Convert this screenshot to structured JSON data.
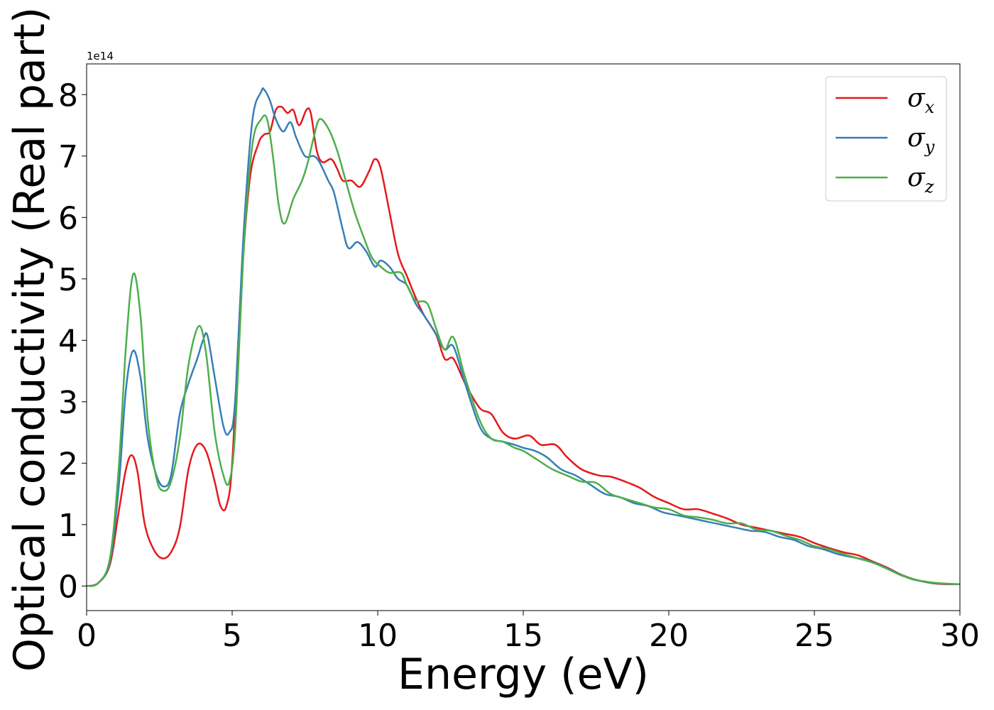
{
  "chart_data": {
    "type": "line",
    "title": "",
    "xlabel": "Energy (eV)",
    "ylabel": "Optical conductivity (Real part)",
    "y_offset_text": "1e14",
    "y_scale": 100000000000000.0,
    "xlim": [
      0,
      30
    ],
    "ylim": [
      -0.4,
      8.5
    ],
    "x_ticks": [
      0,
      5,
      10,
      15,
      20,
      25,
      30
    ],
    "x_tick_labels": [
      "0",
      "5",
      "10",
      "15",
      "20",
      "25",
      "30"
    ],
    "y_ticks": [
      0,
      1,
      2,
      3,
      4,
      5,
      6,
      7,
      8
    ],
    "y_tick_labels": [
      "0",
      "1",
      "2",
      "3",
      "4",
      "5",
      "6",
      "7",
      "8"
    ],
    "grid": false,
    "legend_position": "top-right",
    "series": [
      {
        "name": "σx",
        "legend_base": "σ",
        "legend_sub": "x",
        "color": "#e41a1c",
        "points": [
          [
            0,
            0
          ],
          [
            0.4,
            0.05
          ],
          [
            0.8,
            0.35
          ],
          [
            1.1,
            1.2
          ],
          [
            1.35,
            1.9
          ],
          [
            1.55,
            2.13
          ],
          [
            1.75,
            1.85
          ],
          [
            2.0,
            1.0
          ],
          [
            2.3,
            0.6
          ],
          [
            2.6,
            0.45
          ],
          [
            2.9,
            0.55
          ],
          [
            3.2,
            0.95
          ],
          [
            3.5,
            1.9
          ],
          [
            3.8,
            2.3
          ],
          [
            4.1,
            2.2
          ],
          [
            4.4,
            1.7
          ],
          [
            4.6,
            1.3
          ],
          [
            4.8,
            1.3
          ],
          [
            5.0,
            2.0
          ],
          [
            5.3,
            4.8
          ],
          [
            5.6,
            6.6
          ],
          [
            5.9,
            7.2
          ],
          [
            6.1,
            7.35
          ],
          [
            6.3,
            7.4
          ],
          [
            6.5,
            7.75
          ],
          [
            6.7,
            7.8
          ],
          [
            6.9,
            7.7
          ],
          [
            7.1,
            7.75
          ],
          [
            7.3,
            7.5
          ],
          [
            7.55,
            7.75
          ],
          [
            7.7,
            7.7
          ],
          [
            7.9,
            7.1
          ],
          [
            8.1,
            6.9
          ],
          [
            8.4,
            6.95
          ],
          [
            8.6,
            6.8
          ],
          [
            8.8,
            6.6
          ],
          [
            9.1,
            6.6
          ],
          [
            9.4,
            6.5
          ],
          [
            9.7,
            6.75
          ],
          [
            9.9,
            6.95
          ],
          [
            10.1,
            6.8
          ],
          [
            10.4,
            6.1
          ],
          [
            10.7,
            5.4
          ],
          [
            11.0,
            5.05
          ],
          [
            11.3,
            4.7
          ],
          [
            11.6,
            4.4
          ],
          [
            12.0,
            4.1
          ],
          [
            12.3,
            3.7
          ],
          [
            12.6,
            3.7
          ],
          [
            13.0,
            3.3
          ],
          [
            13.5,
            2.9
          ],
          [
            13.9,
            2.8
          ],
          [
            14.3,
            2.5
          ],
          [
            14.7,
            2.4
          ],
          [
            15.2,
            2.45
          ],
          [
            15.6,
            2.3
          ],
          [
            16.1,
            2.3
          ],
          [
            16.5,
            2.1
          ],
          [
            17.0,
            1.9
          ],
          [
            17.6,
            1.8
          ],
          [
            18.0,
            1.78
          ],
          [
            18.5,
            1.7
          ],
          [
            19.0,
            1.6
          ],
          [
            19.5,
            1.45
          ],
          [
            20.0,
            1.35
          ],
          [
            20.5,
            1.25
          ],
          [
            21.0,
            1.25
          ],
          [
            21.5,
            1.18
          ],
          [
            22.0,
            1.1
          ],
          [
            22.5,
            1.0
          ],
          [
            23.0,
            0.95
          ],
          [
            23.5,
            0.9
          ],
          [
            24.0,
            0.85
          ],
          [
            24.5,
            0.8
          ],
          [
            25.0,
            0.7
          ],
          [
            25.5,
            0.62
          ],
          [
            26.0,
            0.55
          ],
          [
            26.5,
            0.5
          ],
          [
            27.0,
            0.4
          ],
          [
            27.5,
            0.3
          ],
          [
            28.0,
            0.18
          ],
          [
            28.5,
            0.1
          ],
          [
            29.0,
            0.05
          ],
          [
            29.5,
            0.03
          ],
          [
            30.0,
            0.03
          ]
        ]
      },
      {
        "name": "σy",
        "legend_base": "σ",
        "legend_sub": "y",
        "color": "#377eb8",
        "points": [
          [
            0,
            0
          ],
          [
            0.4,
            0.05
          ],
          [
            0.8,
            0.4
          ],
          [
            1.1,
            1.6
          ],
          [
            1.35,
            3.2
          ],
          [
            1.6,
            3.83
          ],
          [
            1.85,
            3.4
          ],
          [
            2.1,
            2.4
          ],
          [
            2.4,
            1.8
          ],
          [
            2.65,
            1.62
          ],
          [
            2.9,
            1.8
          ],
          [
            3.2,
            2.8
          ],
          [
            3.5,
            3.3
          ],
          [
            3.8,
            3.7
          ],
          [
            4.0,
            4.0
          ],
          [
            4.15,
            4.08
          ],
          [
            4.4,
            3.4
          ],
          [
            4.7,
            2.6
          ],
          [
            4.9,
            2.5
          ],
          [
            5.1,
            3.0
          ],
          [
            5.4,
            5.8
          ],
          [
            5.7,
            7.6
          ],
          [
            6.0,
            8.05
          ],
          [
            6.1,
            8.08
          ],
          [
            6.3,
            7.9
          ],
          [
            6.5,
            7.6
          ],
          [
            6.75,
            7.4
          ],
          [
            7.0,
            7.55
          ],
          [
            7.2,
            7.3
          ],
          [
            7.5,
            7.0
          ],
          [
            7.8,
            7.0
          ],
          [
            8.0,
            6.9
          ],
          [
            8.3,
            6.6
          ],
          [
            8.5,
            6.4
          ],
          [
            8.8,
            5.8
          ],
          [
            9.0,
            5.5
          ],
          [
            9.3,
            5.6
          ],
          [
            9.6,
            5.45
          ],
          [
            9.9,
            5.2
          ],
          [
            10.1,
            5.3
          ],
          [
            10.4,
            5.2
          ],
          [
            10.7,
            5.0
          ],
          [
            11.0,
            4.9
          ],
          [
            11.3,
            4.6
          ],
          [
            11.6,
            4.4
          ],
          [
            12.0,
            4.1
          ],
          [
            12.3,
            3.85
          ],
          [
            12.6,
            3.9
          ],
          [
            13.0,
            3.3
          ],
          [
            13.5,
            2.6
          ],
          [
            13.9,
            2.4
          ],
          [
            14.3,
            2.35
          ],
          [
            14.7,
            2.3
          ],
          [
            15.0,
            2.25
          ],
          [
            15.4,
            2.2
          ],
          [
            15.8,
            2.1
          ],
          [
            16.3,
            1.9
          ],
          [
            16.8,
            1.8
          ],
          [
            17.3,
            1.65
          ],
          [
            17.8,
            1.5
          ],
          [
            18.3,
            1.45
          ],
          [
            18.8,
            1.35
          ],
          [
            19.3,
            1.3
          ],
          [
            19.8,
            1.2
          ],
          [
            20.3,
            1.15
          ],
          [
            20.8,
            1.1
          ],
          [
            21.3,
            1.05
          ],
          [
            21.8,
            1.0
          ],
          [
            22.3,
            0.95
          ],
          [
            22.8,
            0.9
          ],
          [
            23.3,
            0.88
          ],
          [
            23.8,
            0.8
          ],
          [
            24.3,
            0.75
          ],
          [
            24.8,
            0.65
          ],
          [
            25.3,
            0.6
          ],
          [
            25.8,
            0.52
          ],
          [
            26.3,
            0.47
          ],
          [
            26.8,
            0.42
          ],
          [
            27.3,
            0.33
          ],
          [
            27.8,
            0.22
          ],
          [
            28.3,
            0.12
          ],
          [
            28.8,
            0.07
          ],
          [
            29.3,
            0.04
          ],
          [
            30.0,
            0.03
          ]
        ]
      },
      {
        "name": "σz",
        "legend_base": "σ",
        "legend_sub": "z",
        "color": "#4daf4a",
        "points": [
          [
            0,
            0
          ],
          [
            0.4,
            0.05
          ],
          [
            0.8,
            0.45
          ],
          [
            1.1,
            1.9
          ],
          [
            1.35,
            3.9
          ],
          [
            1.6,
            5.08
          ],
          [
            1.85,
            4.4
          ],
          [
            2.1,
            2.7
          ],
          [
            2.4,
            1.75
          ],
          [
            2.65,
            1.55
          ],
          [
            2.9,
            1.7
          ],
          [
            3.2,
            2.4
          ],
          [
            3.5,
            3.6
          ],
          [
            3.85,
            4.23
          ],
          [
            4.1,
            3.8
          ],
          [
            4.4,
            2.5
          ],
          [
            4.7,
            1.8
          ],
          [
            4.9,
            1.7
          ],
          [
            5.1,
            2.5
          ],
          [
            5.4,
            5.5
          ],
          [
            5.7,
            7.2
          ],
          [
            6.0,
            7.6
          ],
          [
            6.2,
            7.6
          ],
          [
            6.4,
            7.0
          ],
          [
            6.6,
            6.2
          ],
          [
            6.8,
            5.9
          ],
          [
            7.1,
            6.3
          ],
          [
            7.4,
            6.6
          ],
          [
            7.6,
            6.9
          ],
          [
            7.8,
            7.3
          ],
          [
            8.0,
            7.6
          ],
          [
            8.3,
            7.45
          ],
          [
            8.6,
            7.1
          ],
          [
            8.9,
            6.6
          ],
          [
            9.2,
            6.1
          ],
          [
            9.5,
            5.7
          ],
          [
            9.8,
            5.35
          ],
          [
            10.1,
            5.2
          ],
          [
            10.4,
            5.1
          ],
          [
            10.8,
            5.1
          ],
          [
            11.0,
            4.9
          ],
          [
            11.3,
            4.65
          ],
          [
            11.7,
            4.6
          ],
          [
            12.0,
            4.2
          ],
          [
            12.3,
            3.85
          ],
          [
            12.6,
            4.05
          ],
          [
            13.0,
            3.4
          ],
          [
            13.5,
            2.7
          ],
          [
            13.9,
            2.4
          ],
          [
            14.3,
            2.35
          ],
          [
            14.7,
            2.25
          ],
          [
            15.0,
            2.2
          ],
          [
            15.5,
            2.05
          ],
          [
            16.0,
            1.9
          ],
          [
            16.5,
            1.8
          ],
          [
            17.0,
            1.7
          ],
          [
            17.5,
            1.68
          ],
          [
            18.0,
            1.5
          ],
          [
            18.5,
            1.42
          ],
          [
            19.0,
            1.35
          ],
          [
            19.5,
            1.28
          ],
          [
            20.0,
            1.25
          ],
          [
            20.5,
            1.15
          ],
          [
            21.0,
            1.12
          ],
          [
            21.5,
            1.08
          ],
          [
            22.0,
            1.02
          ],
          [
            22.5,
            1.02
          ],
          [
            23.0,
            0.92
          ],
          [
            23.5,
            0.9
          ],
          [
            24.0,
            0.82
          ],
          [
            24.5,
            0.75
          ],
          [
            25.0,
            0.65
          ],
          [
            25.5,
            0.6
          ],
          [
            26.0,
            0.52
          ],
          [
            26.5,
            0.45
          ],
          [
            27.0,
            0.38
          ],
          [
            27.5,
            0.28
          ],
          [
            28.0,
            0.17
          ],
          [
            28.5,
            0.1
          ],
          [
            29.0,
            0.06
          ],
          [
            29.5,
            0.04
          ],
          [
            30.0,
            0.03
          ]
        ]
      }
    ]
  }
}
